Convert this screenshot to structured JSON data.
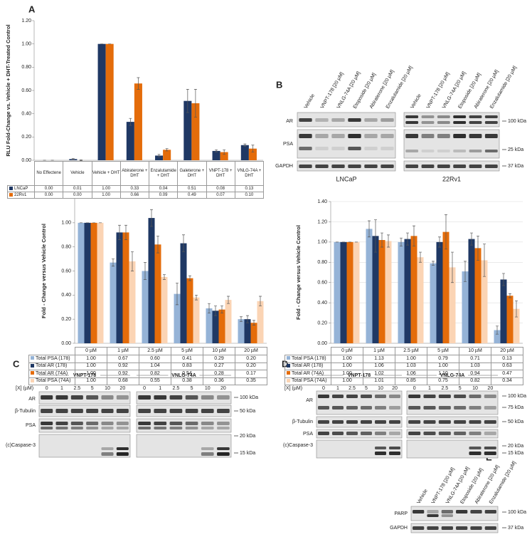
{
  "panel_labels": [
    "A",
    "B",
    "C",
    "D",
    "E"
  ],
  "chart_data": [
    {
      "type": "bar",
      "ylabel": "RLU Fold-Change vs. Vehicle + DHT-Treated Control",
      "categories": [
        "No Effectene",
        "Vehicle",
        "Vehicle + DHT",
        "Abiraterone + DHT",
        "Enzalutamide + DHT",
        "Galeterone + DHT",
        "VNPT-178 + DHT",
        "VNLG-74A + DHT"
      ],
      "series": [
        {
          "name": "LNCaP",
          "color": "#1f3864",
          "values": [
            0,
            0.01,
            1,
            0.33,
            0.04,
            0.51,
            0.08,
            0.13
          ],
          "value_labels": [
            "0.00",
            "0.01",
            "1.00",
            "0.33",
            "0.04",
            "0.51",
            "0.08",
            "0.13"
          ],
          "errors": [
            0,
            0.005,
            0,
            0.03,
            0.01,
            0.1,
            0.01,
            0.01
          ]
        },
        {
          "name": "22Rv1",
          "color": "#e46c0a",
          "values": [
            0,
            0,
            1,
            0.66,
            0.09,
            0.49,
            0.07,
            0.1
          ],
          "value_labels": [
            "0.00",
            "0.00",
            "1.00",
            "0.66",
            "0.09",
            "0.49",
            "0.07",
            "0.10"
          ],
          "errors": [
            0,
            0.003,
            0,
            0.05,
            0.01,
            0.12,
            0.02,
            0.03
          ]
        }
      ],
      "ylim": [
        0,
        1.2
      ],
      "yticks": [
        {
          "value": 0,
          "label": "0.00"
        },
        {
          "value": 0.2,
          "label": "0.20"
        },
        {
          "value": 0.4,
          "label": "0.40"
        },
        {
          "value": 0.6,
          "label": "0.60"
        },
        {
          "value": 0.8,
          "label": "0.80"
        },
        {
          "value": 1,
          "label": "1.00"
        },
        {
          "value": 1.2,
          "label": "1.20"
        }
      ],
      "grid": false
    },
    {
      "type": "bar",
      "ylabel": "Fold - Change versus Vehicle Control",
      "categories": [
        "0 µM",
        "1 µM",
        "2.5 µM",
        "5 µM",
        "10 µM",
        "20 µM"
      ],
      "series": [
        {
          "name": "Total PSA (178)",
          "color": "#95b3d7",
          "values": [
            1,
            0.67,
            0.6,
            0.41,
            0.29,
            0.2
          ],
          "value_labels": [
            "1.00",
            "0.67",
            "0.60",
            "0.41",
            "0.29",
            "0.20"
          ],
          "errors": [
            0,
            0.03,
            0.07,
            0.09,
            0.04,
            0.02
          ]
        },
        {
          "name": "Total AR (178)",
          "color": "#1f3864",
          "values": [
            1,
            0.92,
            1.04,
            0.83,
            0.27,
            0.2
          ],
          "value_labels": [
            "1.00",
            "0.92",
            "1.04",
            "0.83",
            "0.27",
            "0.20"
          ],
          "errors": [
            0,
            0.06,
            0.07,
            0.07,
            0.04,
            0.03
          ]
        },
        {
          "name": "Total AR (74A)",
          "color": "#e46c0a",
          "values": [
            1,
            0.92,
            0.82,
            0.54,
            0.28,
            0.17
          ],
          "value_labels": [
            "1.00",
            "0.92",
            "0.82",
            "0.54",
            "0.28",
            "0.17"
          ],
          "errors": [
            0,
            0.06,
            0.07,
            0.02,
            0.03,
            0.02
          ]
        },
        {
          "name": "Total PSA (74A)",
          "color": "#fbd4b4",
          "values": [
            1,
            0.68,
            0.55,
            0.38,
            0.36,
            0.35
          ],
          "value_labels": [
            "1.00",
            "0.68",
            "0.55",
            "0.38",
            "0.36",
            "0.35"
          ],
          "errors": [
            0,
            0.08,
            0.02,
            0.02,
            0.03,
            0.04
          ]
        }
      ],
      "ylim": [
        0,
        1.2
      ],
      "yticks": [
        {
          "value": 0,
          "label": "0.00"
        },
        {
          "value": 0.2,
          "label": "0.20"
        },
        {
          "value": 0.4,
          "label": "0.40"
        },
        {
          "value": 0.6,
          "label": "0.60"
        },
        {
          "value": 0.8,
          "label": "0.80"
        },
        {
          "value": 1,
          "label": "1.00"
        }
      ],
      "grid": false
    },
    {
      "type": "bar",
      "ylabel": "Fold - Change versus Vehicle Control",
      "categories": [
        "0 µM",
        "1 µM",
        "2.5 µM",
        "5 µM",
        "10 µM",
        "20 µM"
      ],
      "series": [
        {
          "name": "Total PSA (178)",
          "color": "#95b3d7",
          "values": [
            1,
            1.13,
            1,
            0.79,
            0.71,
            0.13
          ],
          "value_labels": [
            "1.00",
            "1.13",
            "1.00",
            "0.79",
            "0.71",
            "0.13"
          ],
          "errors": [
            0,
            0.08,
            0.04,
            0.02,
            0.1,
            0.04
          ]
        },
        {
          "name": "Total AR (178)",
          "color": "#1f3864",
          "values": [
            1,
            1.06,
            1.03,
            1,
            1.03,
            0.63
          ],
          "value_labels": [
            "1.00",
            "1.06",
            "1.03",
            "1.00",
            "1.03",
            "0.63"
          ],
          "errors": [
            0,
            0.16,
            0.06,
            0.05,
            0.06,
            0.06
          ]
        },
        {
          "name": "Total AR (74A)",
          "color": "#e46c0a",
          "values": [
            1,
            1.02,
            1.06,
            1.1,
            0.94,
            0.47
          ],
          "value_labels": [
            "1.00",
            "1.02",
            "1.06",
            "1.10",
            "0.94",
            "0.47"
          ],
          "errors": [
            0,
            0.07,
            0.1,
            0.17,
            0.12,
            0.02
          ]
        },
        {
          "name": "Total PSA (74A)",
          "color": "#fbd4b4",
          "values": [
            1,
            1.01,
            0.85,
            0.75,
            0.82,
            0.34
          ],
          "value_labels": [
            "1.00",
            "1.01",
            "0.85",
            "0.75",
            "0.82",
            "0.34"
          ],
          "errors": [
            0,
            0.06,
            0.05,
            0.15,
            0.16,
            0.08
          ]
        }
      ],
      "ylim": [
        0,
        1.4
      ],
      "yticks": [
        {
          "value": 0,
          "label": "0.00"
        },
        {
          "value": 0.2,
          "label": "0.20"
        },
        {
          "value": 0.4,
          "label": "0.40"
        },
        {
          "value": 0.6,
          "label": "0.60"
        },
        {
          "value": 0.8,
          "label": "0.80"
        },
        {
          "value": 1,
          "label": "1.00"
        },
        {
          "value": 1.2,
          "label": "1.20"
        },
        {
          "value": 1.4,
          "label": "1.40"
        }
      ],
      "grid": true
    }
  ],
  "blot_B": {
    "lanes": [
      "Vehicle",
      "VNPT-178 [20 µM]",
      "VNLG-74A [20 µM]",
      "Etoposide [20 µM]",
      "Abiraterone [20 µM]",
      "Enzalutamide [20 µM]"
    ],
    "groups": [
      "LNCaP",
      "22Rv1"
    ],
    "rows": [
      "AR",
      "PSA",
      "GAPDH"
    ],
    "markers": [
      "100 kDa",
      "25 kDa",
      "37 kDa"
    ]
  },
  "blot_C": {
    "groups": [
      "VNPT-178",
      "VNLG-74A"
    ],
    "dose_label": "[X] (µM)",
    "doses": [
      0,
      1,
      2.5,
      5,
      10,
      20
    ],
    "rows": [
      "AR",
      "β-Tubulin",
      "PSA",
      "(c)Caspase-3"
    ],
    "markers": [
      "100 kDa",
      "50 kDa",
      "20 kDa",
      "15 kDa"
    ]
  },
  "blot_D": {
    "groups": [
      "VNPT-178",
      "VNLG-74A"
    ],
    "dose_label": "[X] (µM)",
    "doses": [
      0,
      1,
      2.5,
      5,
      10,
      20
    ],
    "rows": [
      "AR",
      "β-Tubulin",
      "PSA",
      "(c)Caspase-3"
    ],
    "markers": [
      "100 kDa",
      "75 kDa",
      "50 kDa",
      "20 kDa",
      "15 kDa"
    ]
  },
  "blot_E": {
    "lanes": [
      "Vehicle",
      "VNPT-178 [20 µM]",
      "VNLG-74A [20 µM]",
      "Etoposide [20 µM]",
      "Abiraterone [20 µM]",
      "Enzalutamide [20 µM]"
    ],
    "rows": [
      "PARP",
      "GAPDH"
    ],
    "markers": [
      "100 kDa",
      "37 kDa"
    ]
  }
}
